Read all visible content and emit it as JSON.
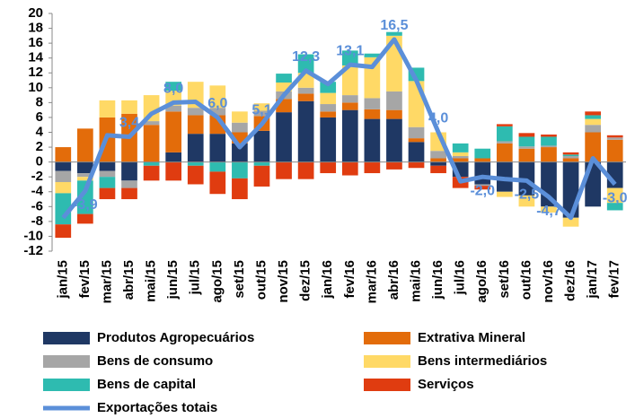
{
  "chart_data": {
    "type": "stacked-bar-line",
    "categories": [
      "jan/15",
      "fev/15",
      "mar/15",
      "abr/15",
      "mai/15",
      "jun/15",
      "jul/15",
      "ago/15",
      "set/15",
      "out/15",
      "nov/15",
      "dez/15",
      "jan/16",
      "fev/16",
      "mar/16",
      "abr/16",
      "mai/16",
      "jun/16",
      "jul/16",
      "ago/16",
      "set/16",
      "out/16",
      "nov/16",
      "dez/16",
      "jan/17",
      "fev/17"
    ],
    "series": [
      {
        "name": "Produtos Agropecuários",
        "color": "#1f3864",
        "values": [
          -1.2,
          -1.5,
          -1.2,
          -2.5,
          0,
          1.3,
          3.8,
          3.8,
          2.5,
          4.2,
          6.7,
          8.2,
          6.0,
          7.0,
          5.8,
          5.8,
          2.7,
          -0.5,
          -2.0,
          -3.0,
          -4.0,
          -4.5,
          -6.0,
          -7.5,
          -6.0,
          -3.5
        ]
      },
      {
        "name": "Extrativa Mineral",
        "color": "#e36c0a",
        "values": [
          2.0,
          4.5,
          6.0,
          6.5,
          5.0,
          5.5,
          2.5,
          2.5,
          1.5,
          2.0,
          1.8,
          1.0,
          0.8,
          1.0,
          1.3,
          1.2,
          0.5,
          0.5,
          0.5,
          0.5,
          2.5,
          1.8,
          2.0,
          0.5,
          4.0,
          3.0
        ]
      },
      {
        "name": "Bens de consumo",
        "color": "#a6a6a6",
        "values": [
          -1.5,
          -0.5,
          -0.8,
          -1.0,
          0.5,
          0.8,
          1.0,
          1.0,
          1.3,
          0.7,
          1.0,
          0.8,
          1.0,
          1.0,
          1.5,
          2.5,
          1.5,
          1.0,
          0.3,
          -0.2,
          0.3,
          0.3,
          0.2,
          0.3,
          1.0,
          0.3
        ]
      },
      {
        "name": "Bens intermediários",
        "color": "#ffd966",
        "values": [
          -1.5,
          -0.5,
          2.3,
          1.8,
          3.5,
          2.0,
          3.5,
          3.0,
          1.5,
          1.0,
          1.2,
          2.0,
          1.5,
          4.0,
          5.5,
          7.5,
          6.2,
          2.5,
          0.5,
          0,
          -0.7,
          -1.5,
          -0.8,
          -1.2,
          0.8,
          -2.0
        ]
      },
      {
        "name": "Bens de capital",
        "color": "#2ebbb0",
        "values": [
          -4.2,
          -4.5,
          -1.5,
          0,
          -0.5,
          1.2,
          -0.5,
          -1.3,
          -2.2,
          -0.5,
          1.2,
          2.5,
          1.5,
          2.0,
          0.5,
          0.5,
          1.8,
          0,
          1.2,
          1.3,
          2.0,
          1.3,
          1.2,
          0.2,
          0.5,
          -1.0
        ]
      },
      {
        "name": "Serviços",
        "color": "#e03c10",
        "values": [
          -1.8,
          -1.3,
          -1.5,
          -1.5,
          -2.0,
          -2.5,
          -2.5,
          -3.0,
          -2.8,
          -2.8,
          -2.3,
          -2.3,
          -1.5,
          -1.8,
          -1.5,
          -1.0,
          -0.8,
          -1.0,
          -1.5,
          -0.5,
          0.3,
          0.5,
          0.3,
          0.3,
          0.5,
          0.3
        ]
      },
      {
        "name": "Exportações totais",
        "color": "#5b8fd9",
        "type": "line",
        "values": [
          -7.5,
          -3.9,
          3.6,
          3.4,
          6.5,
          8.0,
          8.1,
          6.0,
          2.0,
          5.1,
          9.0,
          12.3,
          10.5,
          13.1,
          12.8,
          16.5,
          11.0,
          4.0,
          -2.6,
          -2.0,
          -2.3,
          -2.5,
          -4.7,
          -7.5,
          0.5,
          -3.0
        ],
        "value_labels": [
          null,
          "-3,9",
          null,
          "3,4",
          null,
          "8,0",
          null,
          "6,0",
          null,
          "5,1",
          null,
          "12,3",
          null,
          "13,1",
          null,
          "16,5",
          null,
          "4,0",
          null,
          "-2,0",
          null,
          "-2,5",
          "-4,7",
          null,
          null,
          "-3,0"
        ]
      }
    ],
    "ylim": [
      -12,
      20
    ],
    "yticks": [
      -12,
      -10,
      -8,
      -6,
      -4,
      -2,
      0,
      2,
      4,
      6,
      8,
      10,
      12,
      14,
      16,
      18,
      20
    ],
    "grid": false
  }
}
